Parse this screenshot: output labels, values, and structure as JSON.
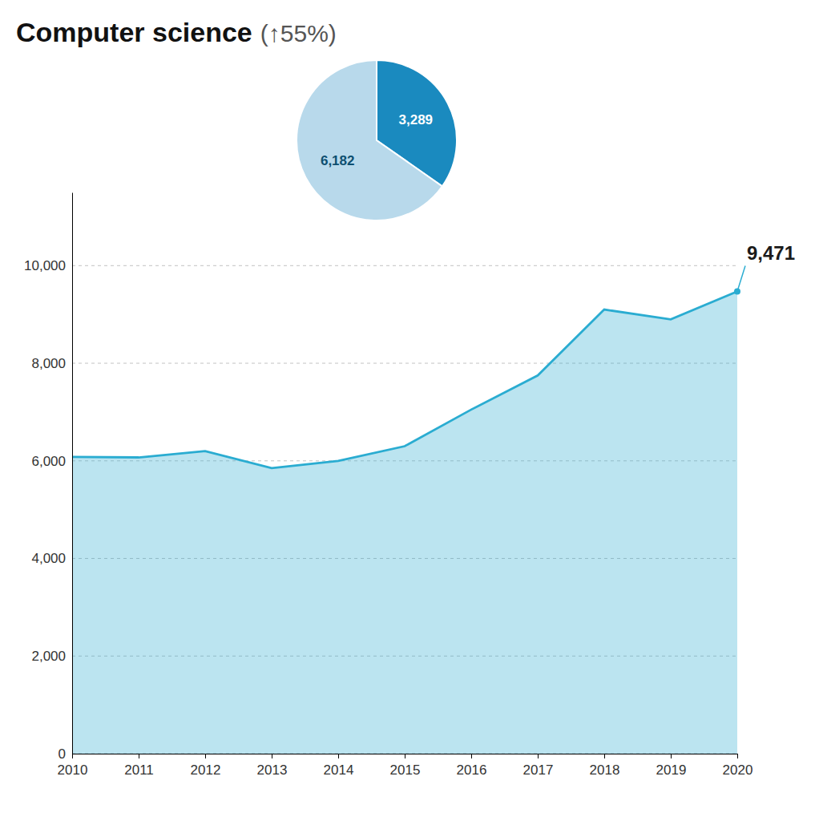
{
  "chart_data": [
    {
      "type": "area",
      "title": "Computer science",
      "subtitle": "(↑55%)",
      "x": [
        2010,
        2011,
        2012,
        2013,
        2014,
        2015,
        2016,
        2017,
        2018,
        2019,
        2020
      ],
      "values": [
        6080,
        6070,
        6200,
        5850,
        6000,
        6300,
        7050,
        7750,
        9100,
        8900,
        9471
      ],
      "color": "#2aacd1",
      "xlim": [
        2010,
        2020
      ],
      "xticks": [
        2010,
        2011,
        2012,
        2013,
        2014,
        2015,
        2016,
        2017,
        2018,
        2019,
        2020
      ],
      "ylim": [
        0,
        11500
      ],
      "yticks": [
        0,
        {
          "value": 2000,
          "label": "2,000"
        },
        {
          "value": 4000,
          "label": "4,000"
        },
        {
          "value": 6000,
          "label": "6,000"
        },
        {
          "value": 8000,
          "label": "8,000"
        },
        {
          "value": 10000,
          "label": "10,000"
        }
      ],
      "grid": true,
      "annotations": [
        {
          "text": "9,471",
          "x": 2020,
          "y": 9471
        }
      ]
    },
    {
      "type": "pie",
      "values": [
        3289,
        6182
      ],
      "value_labels": [
        "3,289",
        "6,182"
      ],
      "colors": [
        "#1a8abf",
        "#b8d9eb"
      ],
      "data_labels": true
    }
  ]
}
